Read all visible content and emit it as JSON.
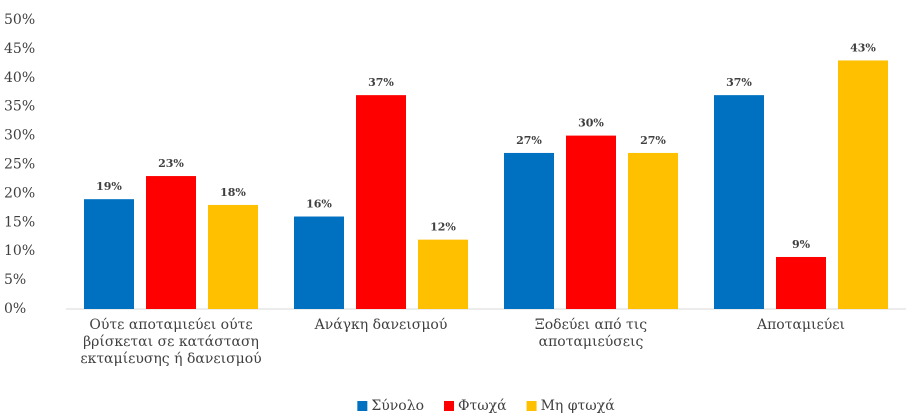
{
  "chart_data": {
    "type": "bar",
    "categories": [
      "Ούτε αποταμιεύει ούτε βρίσκεται σε κατάσταση εκταμίευσης ή δανεισμού",
      "Ανάγκη δανεισμού",
      "Ξοδεύει από τις αποταμιεύσεις",
      "Αποταμιεύει"
    ],
    "series": [
      {
        "name": "Σύνολο",
        "color": "#0070c0",
        "values": [
          19,
          16,
          27,
          37
        ],
        "value_labels": [
          "19%",
          "16%",
          "27%",
          "37%"
        ]
      },
      {
        "name": "Φτωχά",
        "color": "#ff0000",
        "values": [
          23,
          37,
          30,
          9
        ],
        "value_labels": [
          "23%",
          "37%",
          "30%",
          "9%"
        ]
      },
      {
        "name": "Μη φτωχά",
        "color": "#ffc000",
        "values": [
          18,
          12,
          27,
          43
        ],
        "value_labels": [
          "18%",
          "12%",
          "27%",
          "43%"
        ]
      }
    ],
    "ylim": [
      0,
      50
    ],
    "yticks": [
      {
        "value": 0,
        "label": "0%"
      },
      {
        "value": 5,
        "label": "5%"
      },
      {
        "value": 10,
        "label": "10%"
      },
      {
        "value": 15,
        "label": "15%"
      },
      {
        "value": 20,
        "label": "20%"
      },
      {
        "value": 25,
        "label": "25%"
      },
      {
        "value": 30,
        "label": "30%"
      },
      {
        "value": 35,
        "label": "35%"
      },
      {
        "value": 40,
        "label": "40%"
      },
      {
        "value": 45,
        "label": "45%"
      },
      {
        "value": 50,
        "label": "50%"
      }
    ],
    "grid": false,
    "legend": "bottom"
  }
}
